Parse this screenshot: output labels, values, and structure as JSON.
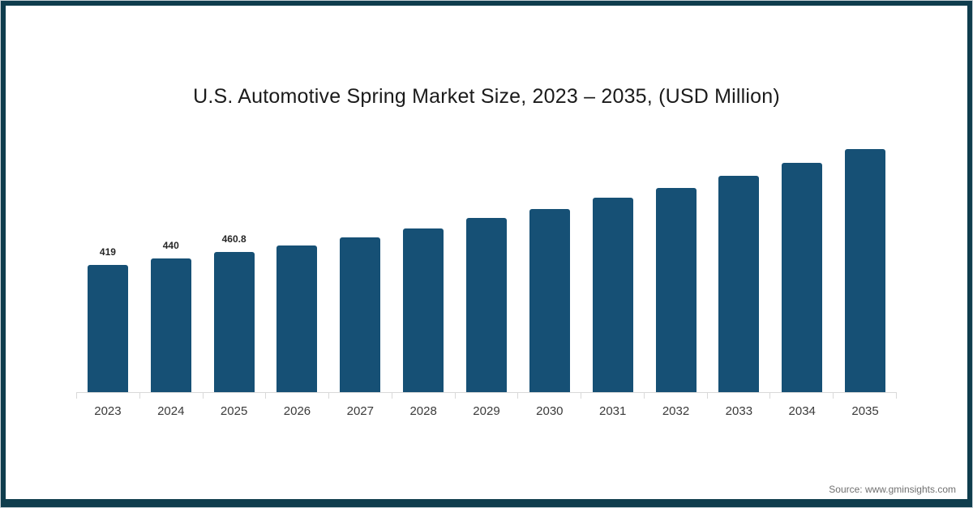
{
  "source": "Source: www.gminsights.com",
  "chart_data": {
    "type": "bar",
    "title": "U.S. Automotive Spring Market Size, 2023 – 2035, (USD Million)",
    "xlabel": "",
    "ylabel": "",
    "categories": [
      "2023",
      "2024",
      "2025",
      "2026",
      "2027",
      "2028",
      "2029",
      "2030",
      "2031",
      "2032",
      "2033",
      "2034",
      "2035"
    ],
    "values": [
      419,
      440,
      460.8,
      483,
      509,
      539,
      573,
      603,
      640,
      672,
      712,
      754,
      800
    ],
    "data_labels": [
      "419",
      "440",
      "460.8",
      "",
      "",
      "",
      "",
      "",
      "",
      "",
      "",
      "",
      ""
    ],
    "ylim": [
      0,
      880
    ],
    "grid": false,
    "legend": false,
    "bar_color": "#165075",
    "frame_border_color": "#0f3d4d",
    "axis_color": "#d9d9d9"
  }
}
